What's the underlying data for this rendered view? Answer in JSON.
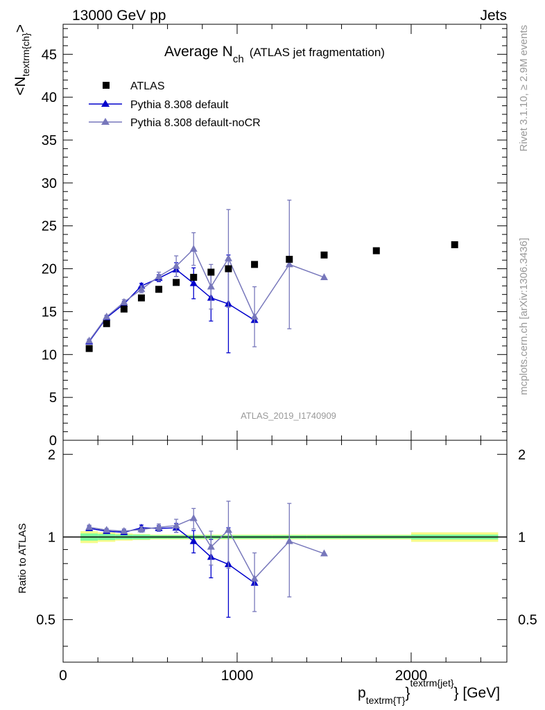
{
  "header": {
    "left": "13000 GeV pp",
    "right": "Jets"
  },
  "side_labels": {
    "rivet_pre": "Rivet 3.1.10, ",
    "rivet_ge": "≥",
    "rivet_post": " 2.9M events",
    "mcplots": "mcplots.cern.ch [arXiv:1306.3436]"
  },
  "chart_data": {
    "type": "scatter",
    "title_main": "Average N",
    "title_sub": "ch",
    "title_paren": "(ATLAS jet fragmentation)",
    "analysis_id": "ATLAS_2019_I1740909",
    "ylabel_main": {
      "pre": "<N",
      "sub": "textrm{ch}",
      "post": ">"
    },
    "ylabel_ratio": "Ratio to ATLAS",
    "xlabel": {
      "pre": "p",
      "sub": "textrm{T}",
      "mid": "}",
      "sup": "textrm{jet}",
      "post": "} [GeV]"
    },
    "xlim": [
      0,
      2550
    ],
    "ylim_main": [
      0,
      48.5
    ],
    "ylim_ratio": [
      0.35,
      2.25
    ],
    "x_ticks": [
      0,
      1000,
      2000
    ],
    "x_tick_labels": [
      "0",
      "1000",
      "2000"
    ],
    "y_ticks_main": [
      0,
      5,
      10,
      15,
      20,
      25,
      30,
      35,
      40,
      45
    ],
    "y_tick_labels_main": [
      "0",
      "5",
      "10",
      "15",
      "20",
      "25",
      "30",
      "35",
      "40",
      "45"
    ],
    "y_ticks_ratio": [
      0.5,
      1,
      2
    ],
    "y_tick_labels_ratio": [
      "0.5",
      "1",
      "2"
    ],
    "legend": [
      "ATLAS",
      "Pythia 8.308 default",
      "Pythia 8.308 default-noCR"
    ],
    "legend_position": "top-left",
    "colors": {
      "data": "#000000",
      "default": "#0000cc",
      "noCR": "#7777bb",
      "band_inner": "#7cfc9c",
      "band_outer": "#f5fb8a"
    },
    "data": {
      "name": "ATLAS",
      "x": [
        150,
        250,
        350,
        450,
        550,
        650,
        750,
        850,
        950,
        1100,
        1300,
        1500,
        1800,
        2250
      ],
      "y": [
        10.7,
        13.6,
        15.3,
        16.6,
        17.6,
        18.4,
        19.0,
        19.6,
        20.0,
        20.5,
        21.1,
        21.6,
        22.1,
        22.8
      ],
      "band_x_edges": [
        100,
        200,
        300,
        400,
        500,
        600,
        700,
        800,
        900,
        1000,
        1200,
        1400,
        1600,
        2000,
        2500
      ],
      "band_inner": [
        0.03,
        0.025,
        0.02,
        0.02,
        0.015,
        0.015,
        0.015,
        0.015,
        0.015,
        0.015,
        0.015,
        0.015,
        0.015,
        0.02
      ],
      "band_outer": [
        0.05,
        0.04,
        0.03,
        0.025,
        0.02,
        0.02,
        0.02,
        0.02,
        0.02,
        0.02,
        0.02,
        0.02,
        0.02,
        0.04
      ]
    },
    "series": [
      {
        "name": "Pythia 8.308 default",
        "x": [
          150,
          250,
          350,
          450,
          550,
          650,
          750,
          850,
          950,
          1100
        ],
        "y": [
          11.5,
          14.3,
          15.9,
          18.0,
          18.9,
          19.9,
          18.3,
          16.6,
          15.9,
          14.0
        ],
        "yerr": [
          0.2,
          0.2,
          0.3,
          0.3,
          0.4,
          0.8,
          1.8,
          2.7,
          5.7,
          0
        ],
        "ratio": [
          1.075,
          1.05,
          1.04,
          1.08,
          1.075,
          1.08,
          0.965,
          0.845,
          0.795,
          0.68
        ],
        "ratio_err": [
          0.02,
          0.015,
          0.02,
          0.025,
          0.025,
          0.04,
          0.09,
          0.135,
          0.285,
          0
        ]
      },
      {
        "name": "Pythia 8.308 default-noCR",
        "x": [
          150,
          250,
          350,
          450,
          550,
          650,
          750,
          850,
          950,
          1100,
          1300,
          1500
        ],
        "y": [
          11.6,
          14.4,
          16.1,
          17.6,
          19.1,
          20.3,
          22.3,
          17.9,
          21.2,
          14.4,
          20.5,
          19.0
        ],
        "yerr": [
          0.2,
          0.2,
          0.3,
          0.4,
          0.5,
          1.2,
          1.9,
          2.6,
          5.7,
          3.5,
          7.5,
          0
        ],
        "ratio": [
          1.085,
          1.06,
          1.05,
          1.065,
          1.085,
          1.1,
          1.17,
          0.92,
          1.06,
          0.705,
          0.965,
          0.87
        ],
        "ratio_err": [
          0.02,
          0.015,
          0.02,
          0.025,
          0.03,
          0.06,
          0.1,
          0.13,
          0.29,
          0.17,
          0.36,
          0
        ]
      }
    ]
  }
}
